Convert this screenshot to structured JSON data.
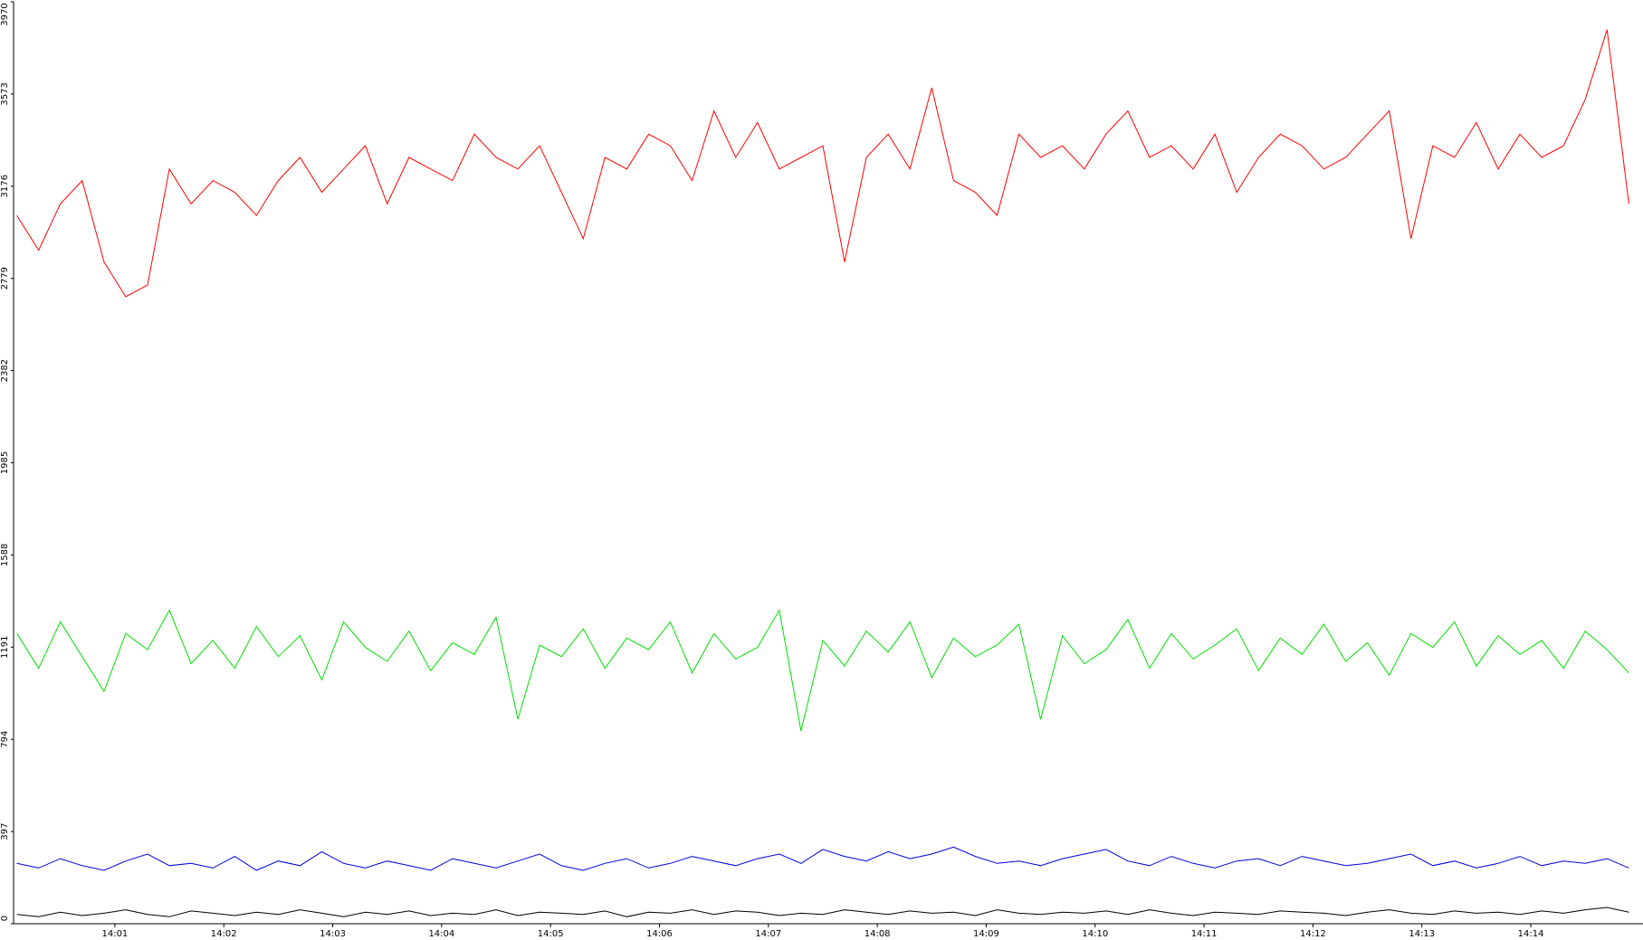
{
  "chart_data": {
    "type": "line",
    "xlim": [
      0.07,
      15.03
    ],
    "xticks": [
      {
        "value": 1,
        "label": "14:01"
      },
      {
        "value": 2,
        "label": "14:02"
      },
      {
        "value": 3,
        "label": "14:03"
      },
      {
        "value": 4,
        "label": "14:04"
      },
      {
        "value": 5,
        "label": "14:05"
      },
      {
        "value": 6,
        "label": "14:06"
      },
      {
        "value": 7,
        "label": "14:07"
      },
      {
        "value": 8,
        "label": "14:08"
      },
      {
        "value": 9,
        "label": "14:09"
      },
      {
        "value": 10,
        "label": "14:10"
      },
      {
        "value": 11,
        "label": "14:11"
      },
      {
        "value": 12,
        "label": "14:12"
      },
      {
        "value": 13,
        "label": "14:13"
      },
      {
        "value": 14,
        "label": "14:14"
      }
    ],
    "ylim": [
      0,
      3970
    ],
    "yticks": [
      0,
      397,
      794,
      1191,
      1588,
      1985,
      2382,
      2779,
      3176,
      3573,
      3970
    ],
    "grid": false,
    "x": [
      0.1,
      0.3,
      0.5,
      0.7,
      0.9,
      1.1,
      1.3,
      1.5,
      1.7,
      1.9,
      2.1,
      2.3,
      2.5,
      2.7,
      2.9,
      3.1,
      3.3,
      3.5,
      3.7,
      3.9,
      4.1,
      4.3,
      4.5,
      4.7,
      4.9,
      5.1,
      5.3,
      5.5,
      5.7,
      5.9,
      6.1,
      6.3,
      6.5,
      6.7,
      6.9,
      7.1,
      7.3,
      7.5,
      7.7,
      7.9,
      8.1,
      8.3,
      8.5,
      8.7,
      8.9,
      9.1,
      9.3,
      9.5,
      9.7,
      9.9,
      10.1,
      10.3,
      10.5,
      10.7,
      10.9,
      11.1,
      11.3,
      11.5,
      11.7,
      11.9,
      12.1,
      12.3,
      12.5,
      12.7,
      12.9,
      13.1,
      13.3,
      13.5,
      13.7,
      13.9,
      14.1,
      14.3,
      14.5,
      14.7,
      14.9
    ],
    "series": [
      {
        "color": "#ff0000",
        "values": [
          3050,
          2900,
          3100,
          3200,
          2850,
          2700,
          2750,
          3250,
          3100,
          3200,
          3150,
          3050,
          3200,
          3300,
          3150,
          3250,
          3350,
          3100,
          3300,
          3250,
          3200,
          3400,
          3300,
          3250,
          3350,
          3150,
          2950,
          3300,
          3250,
          3400,
          3350,
          3200,
          3500,
          3300,
          3450,
          3250,
          3300,
          3350,
          2850,
          3300,
          3400,
          3250,
          3600,
          3200,
          3150,
          3050,
          3400,
          3300,
          3350,
          3250,
          3400,
          3500,
          3300,
          3350,
          3250,
          3400,
          3150,
          3300,
          3400,
          3350,
          3250,
          3300,
          3400,
          3500,
          2950,
          3350,
          3300,
          3450,
          3250,
          3400,
          3300,
          3350,
          3550,
          3850,
          3100
        ]
      },
      {
        "color": "#00e000",
        "values": [
          1250,
          1100,
          1300,
          1150,
          1000,
          1250,
          1180,
          1350,
          1120,
          1220,
          1100,
          1280,
          1150,
          1240,
          1050,
          1300,
          1190,
          1130,
          1260,
          1090,
          1210,
          1160,
          1320,
          880,
          1200,
          1150,
          1270,
          1100,
          1230,
          1180,
          1300,
          1080,
          1250,
          1140,
          1190,
          1350,
          830,
          1220,
          1110,
          1260,
          1170,
          1300,
          1060,
          1230,
          1150,
          1200,
          1290,
          880,
          1240,
          1120,
          1180,
          1310,
          1100,
          1250,
          1140,
          1200,
          1270,
          1090,
          1230,
          1160,
          1290,
          1130,
          1210,
          1070,
          1250,
          1190,
          1300,
          1110,
          1240,
          1160,
          1220,
          1100,
          1260,
          1180,
          1080
        ]
      },
      {
        "color": "#0000e0",
        "values": [
          260,
          240,
          280,
          250,
          230,
          270,
          300,
          250,
          260,
          240,
          290,
          230,
          270,
          250,
          310,
          260,
          240,
          270,
          250,
          230,
          280,
          260,
          240,
          270,
          300,
          250,
          230,
          260,
          280,
          240,
          260,
          290,
          270,
          250,
          280,
          300,
          260,
          320,
          290,
          270,
          310,
          280,
          300,
          330,
          290,
          260,
          270,
          250,
          280,
          300,
          320,
          270,
          250,
          290,
          260,
          240,
          270,
          280,
          250,
          290,
          270,
          250,
          260,
          280,
          300,
          250,
          270,
          240,
          260,
          290,
          250,
          270,
          260,
          280,
          240
        ]
      },
      {
        "color": "#000000",
        "values": [
          40,
          30,
          50,
          35,
          45,
          60,
          40,
          30,
          55,
          45,
          35,
          50,
          40,
          60,
          45,
          30,
          50,
          40,
          55,
          35,
          45,
          40,
          60,
          35,
          50,
          45,
          40,
          55,
          30,
          50,
          45,
          60,
          40,
          55,
          50,
          35,
          45,
          40,
          60,
          50,
          40,
          55,
          45,
          50,
          35,
          60,
          45,
          40,
          50,
          45,
          55,
          40,
          60,
          45,
          35,
          50,
          45,
          40,
          55,
          50,
          45,
          35,
          50,
          60,
          45,
          40,
          55,
          45,
          50,
          40,
          55,
          45,
          60,
          70,
          50
        ]
      }
    ]
  }
}
